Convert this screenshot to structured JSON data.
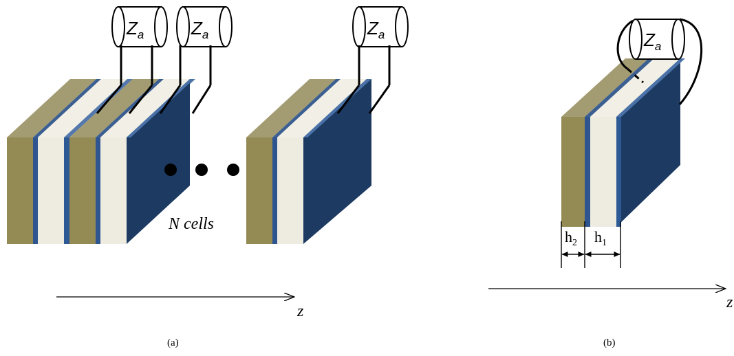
{
  "panel_a": {
    "impedance_label": "Z",
    "impedance_subscript": "a",
    "cells_label": "N cells",
    "axis_label": "z",
    "caption": "(a)"
  },
  "panel_b": {
    "impedance_label": "Z",
    "impedance_subscript": "a",
    "thickness_label_2": "h",
    "thickness_sub_2": "2",
    "thickness_label_1": "h",
    "thickness_sub_1": "1",
    "axis_label": "z",
    "caption": "(b)"
  },
  "colors": {
    "olive_front": "#948a54",
    "olive_top": "#a39c72",
    "beige_front": "#eeece1",
    "beige_top": "#f2f0e6",
    "navy_front": "#1f3b63",
    "navy_side": "#1c3a62",
    "navy_top": "#23406a",
    "thin_blue": "#4a72a8"
  }
}
